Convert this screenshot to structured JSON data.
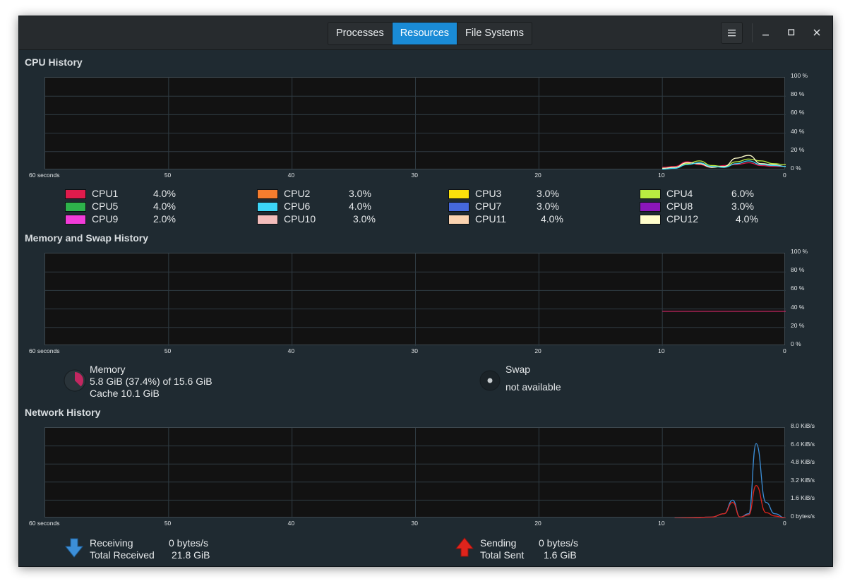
{
  "tabs": [
    {
      "label": "Processes",
      "active": false
    },
    {
      "label": "Resources",
      "active": true
    },
    {
      "label": "File Systems",
      "active": false
    }
  ],
  "icons": {
    "menu": "hamburger-menu-icon",
    "minimize": "minimize-icon",
    "maximize": "maximize-icon",
    "close": "close-icon"
  },
  "x_axis": {
    "start_label": "60 seconds",
    "ticks": [
      "50",
      "40",
      "30",
      "20",
      "10",
      "0"
    ]
  },
  "cpu": {
    "title": "CPU History",
    "y_ticks": [
      "100 %",
      "80 %",
      "60 %",
      "40 %",
      "20 %",
      "0 %"
    ],
    "cores": [
      {
        "name": "CPU1",
        "value": "4.0%",
        "color": "#e01b4c"
      },
      {
        "name": "CPU2",
        "value": "3.0%",
        "color": "#f57d2e"
      },
      {
        "name": "CPU3",
        "value": "3.0%",
        "color": "#fbe00b"
      },
      {
        "name": "CPU4",
        "value": "6.0%",
        "color": "#b9ec41"
      },
      {
        "name": "CPU5",
        "value": "4.0%",
        "color": "#2eb34b"
      },
      {
        "name": "CPU6",
        "value": "4.0%",
        "color": "#3cd5f7"
      },
      {
        "name": "CPU7",
        "value": "3.0%",
        "color": "#4568dc"
      },
      {
        "name": "CPU8",
        "value": "3.0%",
        "color": "#8b16ba"
      },
      {
        "name": "CPU9",
        "value": "2.0%",
        "color": "#f23cd9"
      },
      {
        "name": "CPU10",
        "value": "3.0%",
        "color": "#f3bdbb"
      },
      {
        "name": "CPU11",
        "value": "4.0%",
        "color": "#fbd3b0"
      },
      {
        "name": "CPU12",
        "value": "4.0%",
        "color": "#fffdcb"
      }
    ]
  },
  "memory": {
    "title": "Memory and Swap History",
    "y_ticks": [
      "100 %",
      "80 %",
      "60 %",
      "40 %",
      "20 %",
      "0 %"
    ],
    "memory_label": "Memory",
    "memory_usage": "5.8 GiB (37.4%) of 15.6 GiB",
    "cache": "Cache 10.1 GiB",
    "memory_fraction": 0.374,
    "memory_color": "#c22760",
    "swap_label": "Swap",
    "swap_status": "not available"
  },
  "network": {
    "title": "Network History",
    "y_ticks": [
      "8.0 KiB/s",
      "6.4 KiB/s",
      "4.8 KiB/s",
      "3.2 KiB/s",
      "1.6 KiB/s",
      "0 bytes/s"
    ],
    "receiving_label": "Receiving",
    "receiving_value": "0 bytes/s",
    "total_received_label": "Total Received",
    "total_received_value": "21.8 GiB",
    "sending_label": "Sending",
    "sending_value": "0 bytes/s",
    "total_sent_label": "Total Sent",
    "total_sent_value": "1.6 GiB",
    "receiving_color": "#3c8fd8",
    "sending_color": "#e0241c"
  },
  "chart_data": [
    {
      "type": "line",
      "title": "CPU History",
      "x": [
        10,
        9,
        8,
        7,
        6,
        5,
        4,
        3,
        2,
        1,
        0
      ],
      "ylim": [
        0,
        100
      ],
      "series": [
        {
          "name": "CPU1",
          "values": [
            3,
            4,
            9,
            6,
            3,
            5,
            6,
            8,
            5,
            4,
            4
          ]
        },
        {
          "name": "CPU4",
          "values": [
            2,
            3,
            7,
            10,
            5,
            4,
            9,
            12,
            10,
            7,
            6
          ]
        },
        {
          "name": "CPU12",
          "values": [
            2,
            3,
            8,
            7,
            3,
            4,
            13,
            16,
            7,
            6,
            4
          ]
        },
        {
          "name": "CPU6",
          "values": [
            1,
            2,
            6,
            8,
            4,
            3,
            7,
            10,
            6,
            5,
            4
          ]
        }
      ]
    },
    {
      "type": "line",
      "title": "Memory and Swap History",
      "x": [
        10,
        0
      ],
      "ylim": [
        0,
        100
      ],
      "series": [
        {
          "name": "Memory",
          "values": [
            37.4,
            37.4
          ]
        }
      ]
    },
    {
      "type": "line",
      "title": "Network History",
      "x": [
        9,
        8,
        6,
        5,
        4.3,
        3.7,
        3,
        2.4,
        1.6,
        0.9,
        0
      ],
      "ylim": [
        0,
        8.0
      ],
      "series": [
        {
          "name": "Receiving",
          "values": [
            0,
            0.02,
            0.1,
            0.4,
            1.6,
            0.1,
            0.4,
            6.6,
            1.4,
            0.4,
            0
          ]
        },
        {
          "name": "Sending",
          "values": [
            0,
            0.02,
            0.1,
            0.4,
            1.4,
            0.1,
            0.3,
            2.9,
            0.5,
            0.2,
            0
          ]
        }
      ]
    }
  ]
}
